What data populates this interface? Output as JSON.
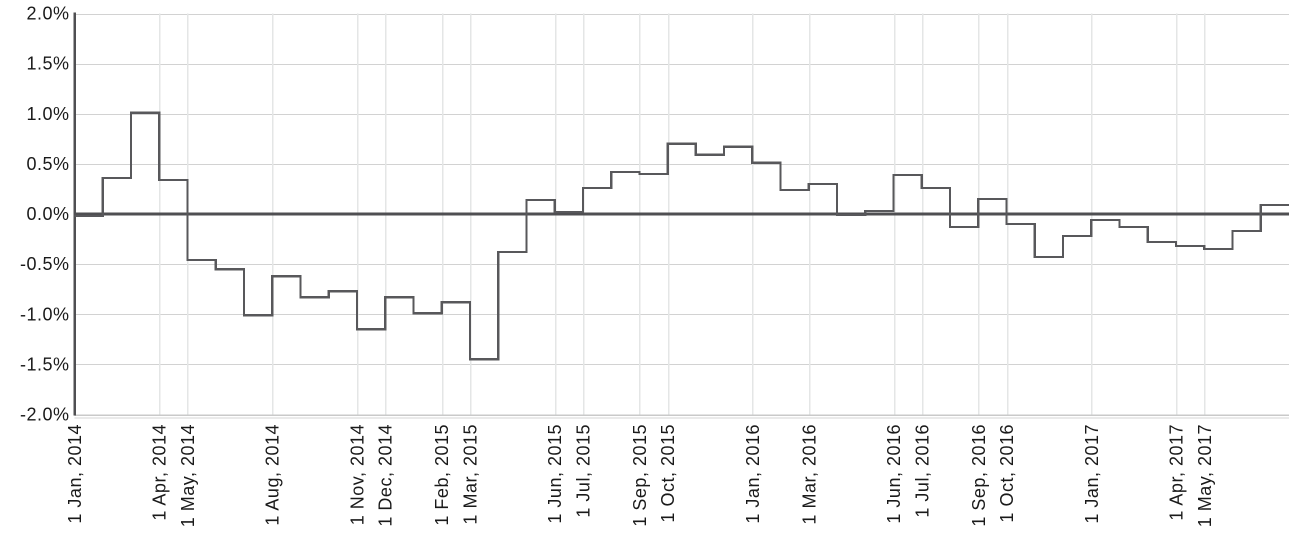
{
  "chart_data": {
    "type": "line",
    "subtype": "step-after",
    "title": "",
    "xlabel": "",
    "ylabel": "",
    "unit": "%",
    "ylim": [
      -2.0,
      2.0
    ],
    "grid": true,
    "legend": "none",
    "x": [
      "Jan 2014",
      "Feb 2014",
      "Mar 2014",
      "Apr 2014",
      "May 2014",
      "Jun 2014",
      "Jul 2014",
      "Aug 2014",
      "Sep 2014",
      "Oct 2014",
      "Nov 2014",
      "Dec 2014",
      "Jan 2015",
      "Feb 2015",
      "Mar 2015",
      "Apr 2015",
      "May 2015",
      "Jun 2015",
      "Jul 2015",
      "Aug 2015",
      "Sep 2015",
      "Oct 2015",
      "Nov 2015",
      "Dec 2015",
      "Jan 2016",
      "Feb 2016",
      "Mar 2016",
      "Apr 2016",
      "May 2016",
      "Jun 2016",
      "Jul 2016",
      "Aug 2016",
      "Sep 2016",
      "Oct 2016",
      "Nov 2016",
      "Dec 2016",
      "Jan 2017",
      "Feb 2017",
      "Mar 2017",
      "Apr 2017",
      "May 2017",
      "Jun 2017",
      "Jul 2017"
    ],
    "values": [
      -0.02,
      0.36,
      1.01,
      0.34,
      -0.46,
      -0.55,
      -1.01,
      -0.62,
      -0.83,
      -0.77,
      -1.15,
      -0.83,
      -0.99,
      -0.88,
      -1.45,
      -0.38,
      0.14,
      0.02,
      0.26,
      0.42,
      0.4,
      0.7,
      0.59,
      0.67,
      0.51,
      0.24,
      0.3,
      -0.01,
      0.03,
      0.39,
      0.26,
      -0.13,
      0.15,
      -0.1,
      -0.43,
      -0.22,
      -0.06,
      -0.13,
      -0.28,
      -0.32,
      -0.35,
      -0.17,
      0.09
    ],
    "y_ticks": [
      {
        "value": 2.0,
        "label": "2.0%"
      },
      {
        "value": 1.5,
        "label": "1.5%"
      },
      {
        "value": 1.0,
        "label": "1.0%"
      },
      {
        "value": 0.5,
        "label": "0.5%"
      },
      {
        "value": 0.0,
        "label": "0.0%"
      },
      {
        "value": -0.5,
        "label": "-0.5%"
      },
      {
        "value": -1.0,
        "label": "-1.0%"
      },
      {
        "value": -1.5,
        "label": "-1.5%"
      },
      {
        "value": -2.0,
        "label": "-2.0%"
      }
    ],
    "x_ticks": [
      {
        "month_index": 0,
        "label": "1 Jan, 2014"
      },
      {
        "month_index": 3,
        "label": "1 Apr, 2014"
      },
      {
        "month_index": 4,
        "label": "1 May, 2014"
      },
      {
        "month_index": 7,
        "label": "1 Aug, 2014"
      },
      {
        "month_index": 10,
        "label": "1 Nov, 2014"
      },
      {
        "month_index": 11,
        "label": "1 Dec, 2014"
      },
      {
        "month_index": 13,
        "label": "1 Feb, 2015"
      },
      {
        "month_index": 14,
        "label": "1 Mar, 2015"
      },
      {
        "month_index": 17,
        "label": "1 Jun, 2015"
      },
      {
        "month_index": 18,
        "label": "1 Jul, 2015"
      },
      {
        "month_index": 20,
        "label": "1 Sep, 2015"
      },
      {
        "month_index": 21,
        "label": "1 Oct, 2015"
      },
      {
        "month_index": 24,
        "label": "1 Jan, 2016"
      },
      {
        "month_index": 26,
        "label": "1 Mar, 2016"
      },
      {
        "month_index": 29,
        "label": "1 Jun, 2016"
      },
      {
        "month_index": 30,
        "label": "1 Jul, 2016"
      },
      {
        "month_index": 32,
        "label": "1 Sep, 2016"
      },
      {
        "month_index": 33,
        "label": "1 Oct, 2016"
      },
      {
        "month_index": 36,
        "label": "1 Jan, 2017"
      },
      {
        "month_index": 39,
        "label": "1 Apr, 2017"
      },
      {
        "month_index": 40,
        "label": "1 May, 2017"
      }
    ],
    "colors": {
      "background": "#ffffff",
      "series_line": "#58585b",
      "zero_line": "#4f4f52",
      "y_axis_line": "#4f4f52",
      "grid_horizontal": "#d2d2d2",
      "grid_vertical": "#e4e6e6",
      "bottom_border": "#c9c9c9",
      "bottom_border_shadow": "#eaeaea",
      "tick_label": "#1a1a1a"
    }
  }
}
